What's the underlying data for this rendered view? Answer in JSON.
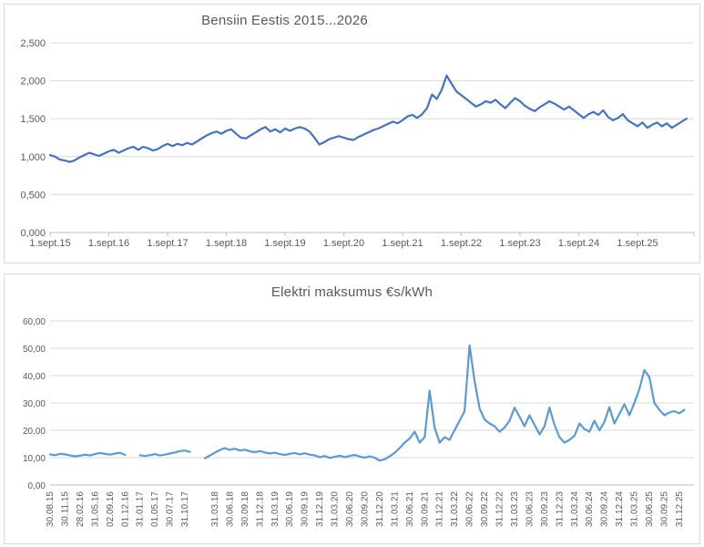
{
  "chart_data": [
    {
      "type": "line",
      "title": "Bensiin Eestis 2015...2026",
      "line_color": "#4472c4",
      "grid": true,
      "legend": false,
      "ylim": [
        0,
        2.5
      ],
      "ytick_values": [
        0,
        0.5,
        1.0,
        1.5,
        2.0,
        2.5
      ],
      "ytick_labels": [
        "0,000",
        "0,500",
        "1,000",
        "1,500",
        "2,000",
        "2,500"
      ],
      "xtick_labels": [
        "1.sept.15",
        "1.sept.16",
        "1.sept.17",
        "1.sept.18",
        "1.sept.19",
        "1.sept.20",
        "1.sept.21",
        "1.sept.22",
        "1.sept.23",
        "1.sept.24",
        "1.sept.25"
      ],
      "months_per_xlabel": 12,
      "x_start": "2015-09",
      "values": [
        1.02,
        1.0,
        0.96,
        0.95,
        0.93,
        0.95,
        0.99,
        1.02,
        1.05,
        1.03,
        1.01,
        1.04,
        1.07,
        1.09,
        1.05,
        1.08,
        1.11,
        1.13,
        1.09,
        1.13,
        1.11,
        1.08,
        1.1,
        1.14,
        1.17,
        1.14,
        1.17,
        1.15,
        1.18,
        1.16,
        1.2,
        1.24,
        1.28,
        1.31,
        1.33,
        1.3,
        1.34,
        1.36,
        1.3,
        1.25,
        1.24,
        1.28,
        1.32,
        1.36,
        1.39,
        1.33,
        1.36,
        1.32,
        1.37,
        1.34,
        1.37,
        1.39,
        1.37,
        1.33,
        1.25,
        1.16,
        1.19,
        1.23,
        1.25,
        1.27,
        1.25,
        1.23,
        1.22,
        1.26,
        1.29,
        1.32,
        1.35,
        1.37,
        1.4,
        1.43,
        1.46,
        1.44,
        1.48,
        1.53,
        1.55,
        1.51,
        1.56,
        1.64,
        1.82,
        1.76,
        1.88,
        2.07,
        1.96,
        1.86,
        1.81,
        1.76,
        1.71,
        1.66,
        1.69,
        1.73,
        1.71,
        1.75,
        1.69,
        1.64,
        1.71,
        1.77,
        1.73,
        1.67,
        1.63,
        1.6,
        1.65,
        1.69,
        1.73,
        1.7,
        1.66,
        1.62,
        1.66,
        1.61,
        1.56,
        1.51,
        1.56,
        1.59,
        1.55,
        1.61,
        1.52,
        1.48,
        1.51,
        1.56,
        1.48,
        1.44,
        1.4,
        1.45,
        1.38,
        1.42,
        1.45,
        1.4,
        1.44,
        1.38,
        1.42,
        1.46,
        1.5
      ]
    },
    {
      "type": "line",
      "title": "Elektri maksumus €s/kWh",
      "line_color": "#5b9bd5",
      "grid": true,
      "legend": false,
      "ylim": [
        0,
        60
      ],
      "ytick_values": [
        0,
        10,
        20,
        30,
        40,
        50,
        60
      ],
      "ytick_labels": [
        "0,00",
        "10,00",
        "20,00",
        "30,00",
        "40,00",
        "50,00",
        "60,00"
      ],
      "xtick_labels": [
        "30.08.15",
        "30.11.15",
        "28.02.16",
        "31.05.16",
        "02.09.16",
        "01.12.16",
        "31.01.17",
        "01.05.17",
        "30.07.17",
        "31.10.17",
        "",
        "31.03.18",
        "30.06.18",
        "30.09.18",
        "31.12.18",
        "31.03.19",
        "30.06.19",
        "30.09.19",
        "31.12.19",
        "31.03.20",
        "30.06.20",
        "30.09.20",
        "31.12.20",
        "31.03.21",
        "30.06.21",
        "30.09.21",
        "31.12.21",
        "31.03.22",
        "30.06.22",
        "30.09.22",
        "31.12.22",
        "31.03.23",
        "30.06.23",
        "30.09.23",
        "31.12.23",
        "31.03.24",
        "30.06.24",
        "30.09.24",
        "31.12.24",
        "31.03.25",
        "30.06.25",
        "30.09.25",
        "31.12.25"
      ],
      "months_per_xlabel": 3,
      "x_start": "2015-08",
      "values": [
        11.2,
        10.9,
        11.4,
        11.2,
        10.8,
        10.5,
        10.7,
        11.1,
        10.8,
        11.3,
        11.7,
        11.4,
        11.1,
        11.5,
        11.8,
        11.0,
        null,
        null,
        10.9,
        10.6,
        10.9,
        11.3,
        10.8,
        11.1,
        11.5,
        11.9,
        12.4,
        12.6,
        12.1,
        null,
        null,
        9.8,
        10.8,
        11.8,
        12.8,
        13.5,
        12.8,
        13.3,
        12.6,
        12.9,
        12.3,
        12.0,
        12.4,
        11.9,
        11.5,
        11.8,
        11.3,
        11.0,
        11.4,
        11.7,
        11.2,
        11.6,
        11.1,
        10.8,
        10.2,
        10.6,
        9.9,
        10.3,
        10.7,
        10.2,
        10.6,
        11.0,
        10.4,
        10.0,
        10.5,
        10.0,
        8.9,
        9.4,
        10.5,
        11.8,
        13.5,
        15.5,
        17.0,
        19.5,
        15.5,
        17.5,
        34.5,
        21.0,
        15.5,
        17.5,
        16.5,
        20.0,
        23.5,
        27.0,
        51.0,
        38.0,
        28.0,
        24.0,
        22.5,
        21.5,
        19.5,
        21.0,
        23.5,
        28.3,
        25.0,
        21.5,
        25.5,
        22.0,
        18.5,
        21.5,
        28.3,
        22.0,
        17.5,
        15.5,
        16.5,
        18.0,
        22.5,
        20.5,
        19.5,
        23.5,
        20.0,
        23.0,
        28.5,
        22.5,
        26.0,
        29.5,
        25.5,
        30.0,
        35.0,
        42.0,
        39.5,
        30.0,
        27.5,
        25.5,
        26.5,
        27.0,
        26.2,
        27.5
      ]
    }
  ],
  "colors": {
    "gridline": "#d9d9d9",
    "axis": "#bfbfbf",
    "text": "#595959",
    "panel_border": "#d9d9d9"
  }
}
